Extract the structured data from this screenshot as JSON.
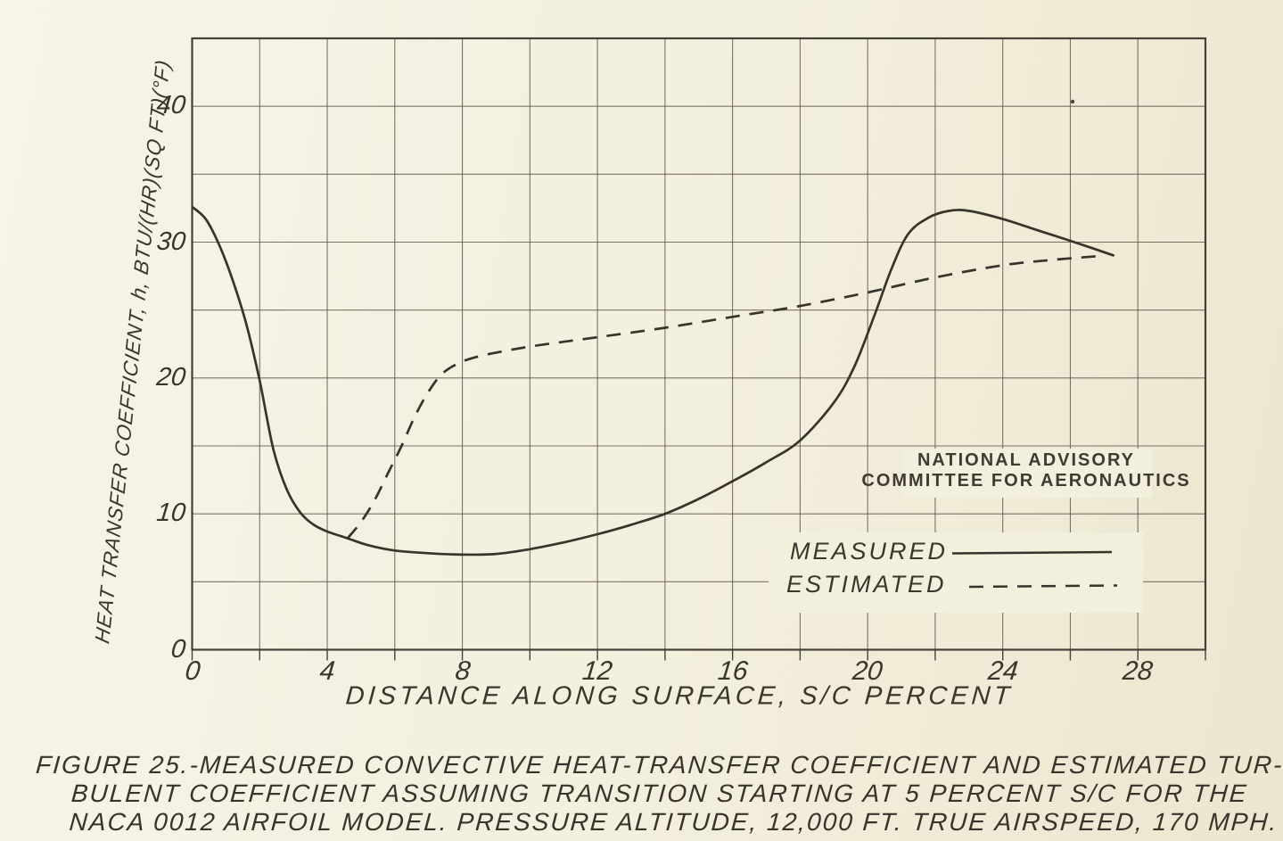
{
  "figure": {
    "caption_line1": "FIGURE 25.-MEASURED CONVECTIVE HEAT-TRANSFER COEFFICIENT AND ESTIMATED TUR-",
    "caption_line2": "BULENT COEFFICIENT ASSUMING TRANSITION STARTING AT 5 PERCENT S/C FOR THE",
    "caption_line3": "NACA 0012 AIRFOIL MODEL. PRESSURE ALTITUDE, 12,000 FT. TRUE AIRSPEED, 170 MPH."
  },
  "stamp": {
    "line1": "NATIONAL ADVISORY",
    "line2": "COMMITTEE FOR AERONAUTICS"
  },
  "legend": {
    "measured": "MEASURED",
    "estimated": "ESTIMATED"
  },
  "colors": {
    "paper": "#f3efdd",
    "ink": "#3a352c",
    "grid": "#5a544a",
    "curve": "#38332b"
  },
  "chart_data": {
    "type": "line",
    "title": "",
    "xlabel": "DISTANCE ALONG SURFACE, S/C PERCENT",
    "ylabel": "HEAT TRANSFER COEFFICIENT, h, BTU/(HR)(SQ FT)(°F)",
    "xlim": [
      0,
      30
    ],
    "ylim": [
      0,
      45
    ],
    "x_ticks": [
      0,
      4,
      8,
      12,
      16,
      20,
      24,
      28
    ],
    "y_ticks": [
      0,
      10,
      20,
      30,
      40
    ],
    "x_grid_step": 2,
    "y_grid_step": 5,
    "grid": true,
    "legend_position": "lower right",
    "series": [
      {
        "name": "MEASURED",
        "style": "solid",
        "points": [
          [
            0,
            32.6
          ],
          [
            0.4,
            31.7
          ],
          [
            0.8,
            29.8
          ],
          [
            1.2,
            27.2
          ],
          [
            1.6,
            24.0
          ],
          [
            2.0,
            19.8
          ],
          [
            2.4,
            14.8
          ],
          [
            2.8,
            11.8
          ],
          [
            3.2,
            10.1
          ],
          [
            3.6,
            9.2
          ],
          [
            4.0,
            8.7
          ],
          [
            4.6,
            8.2
          ],
          [
            5.2,
            7.7
          ],
          [
            6,
            7.3
          ],
          [
            7,
            7.1
          ],
          [
            8,
            7.0
          ],
          [
            9,
            7.05
          ],
          [
            10,
            7.4
          ],
          [
            11,
            7.9
          ],
          [
            12,
            8.5
          ],
          [
            13,
            9.2
          ],
          [
            14,
            10.0
          ],
          [
            15,
            11.1
          ],
          [
            16,
            12.4
          ],
          [
            17,
            13.8
          ],
          [
            18,
            15.4
          ],
          [
            19,
            18.2
          ],
          [
            19.6,
            20.8
          ],
          [
            20.2,
            24.6
          ],
          [
            20.7,
            28.0
          ],
          [
            21.2,
            30.6
          ],
          [
            21.8,
            31.8
          ],
          [
            22.4,
            32.3
          ],
          [
            23,
            32.3
          ],
          [
            24,
            31.7
          ],
          [
            25,
            30.9
          ],
          [
            26,
            30.1
          ],
          [
            27.3,
            29.0
          ]
        ]
      },
      {
        "name": "ESTIMATED",
        "style": "dashed",
        "points": [
          [
            4.6,
            8.2
          ],
          [
            5.0,
            9.4
          ],
          [
            5.4,
            11.0
          ],
          [
            5.8,
            13.0
          ],
          [
            6.2,
            15.0
          ],
          [
            6.6,
            17.2
          ],
          [
            7.0,
            19.0
          ],
          [
            7.4,
            20.3
          ],
          [
            7.9,
            21.1
          ],
          [
            8.5,
            21.6
          ],
          [
            9.5,
            22.1
          ],
          [
            10.5,
            22.5
          ],
          [
            12,
            23.0
          ],
          [
            14,
            23.7
          ],
          [
            16,
            24.5
          ],
          [
            18,
            25.3
          ],
          [
            20,
            26.3
          ],
          [
            22,
            27.4
          ],
          [
            24,
            28.3
          ],
          [
            25.5,
            28.7
          ],
          [
            27,
            29.0
          ]
        ]
      }
    ]
  }
}
